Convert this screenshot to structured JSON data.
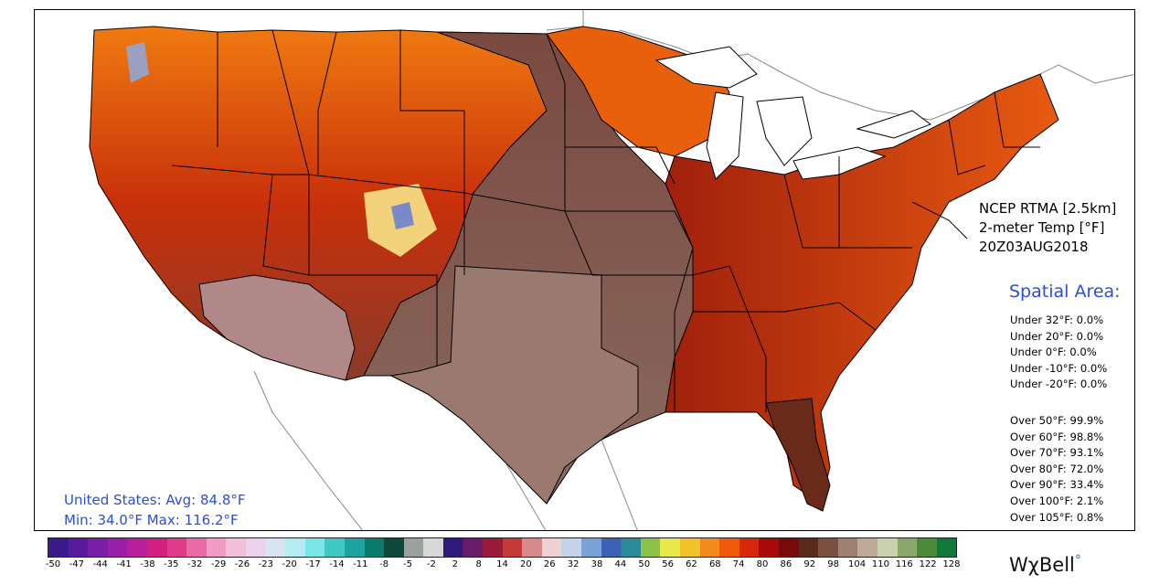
{
  "product": {
    "line1": "NCEP RTMA [2.5km]",
    "line2": "2-meter Temp [°F]",
    "line3": "20Z03AUG2018"
  },
  "spatial": {
    "title": "Spatial Area:",
    "under": [
      "Under 32°F: 0.0%",
      "Under 20°F: 0.0%",
      "Under 0°F: 0.0%",
      "Under -10°F: 0.0%",
      "Under -20°F: 0.0%"
    ],
    "over": [
      "Over 50°F: 99.9%",
      "Over 60°F: 98.8%",
      "Over 70°F: 93.1%",
      "Over 80°F: 72.0%",
      "Over 90°F: 33.4%",
      "Over 100°F: 2.1%",
      "Over 105°F: 0.8%"
    ]
  },
  "summary": {
    "avg": "United States: Avg:  84.8°F",
    "minmax": "Min:  34.0°F Max: 116.2°F"
  },
  "colorbar": {
    "labels": [
      "-50",
      "-47",
      "-44",
      "-41",
      "-38",
      "-35",
      "-32",
      "-29",
      "-26",
      "-23",
      "-20",
      "-17",
      "-14",
      "-11",
      "-8",
      "-5",
      "-2",
      "2",
      "8",
      "14",
      "20",
      "26",
      "32",
      "38",
      "44",
      "50",
      "56",
      "62",
      "68",
      "74",
      "80",
      "86",
      "92",
      "98",
      "104",
      "110",
      "116",
      "122",
      "128"
    ],
    "colors": [
      "#3b1a8c",
      "#5a1a9c",
      "#7a1ea8",
      "#9a1fa8",
      "#b81f9a",
      "#d02080",
      "#e03a8a",
      "#ea6aa8",
      "#f09ac4",
      "#f2c0da",
      "#ead2ea",
      "#d8e4f2",
      "#b4ecf4",
      "#7ae6ea",
      "#3ec9c6",
      "#1ea4a0",
      "#0c7a6e",
      "#0d4a3a",
      "#9aa29e",
      "#d8d8d8",
      "#2e1a7a",
      "#6a1a6a",
      "#9a1a3a",
      "#c23a3a",
      "#d88a8a",
      "#eed2d2",
      "#c4d2ea",
      "#7aa2d8",
      "#3c62b8",
      "#2a8a9a",
      "#8ac24a",
      "#e8e84a",
      "#f2c22a",
      "#f48a1a",
      "#f05a0a",
      "#d8280a",
      "#a80a0a",
      "#7a0a0a",
      "#5a2a1a",
      "#7a5040",
      "#a08070",
      "#c0a898",
      "#c8d0b0",
      "#8aa86a",
      "#4a8a3a",
      "#0e7a3a"
    ]
  },
  "legend_colors": {
    "hot": "#e8520a",
    "very_hot": "#a50d0d",
    "mild": "#8a6e62",
    "warm_brown": "#5a2418",
    "cool": "#c0a0a8",
    "water": "#ffffff",
    "accent_text": "#2a4fd6"
  },
  "brand": {
    "name": "WχBell",
    "dot": "°"
  }
}
